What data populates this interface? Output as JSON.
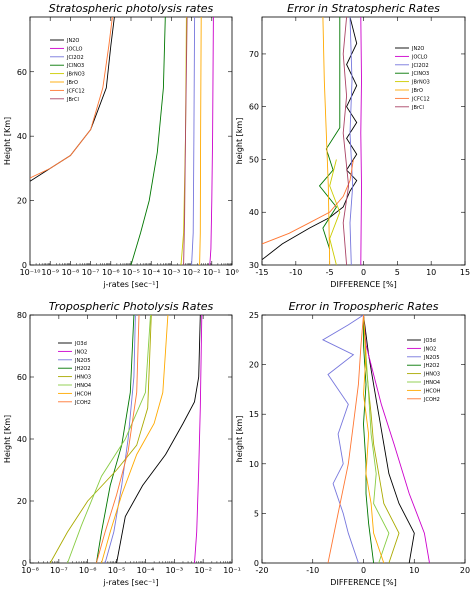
{
  "chart_data": [
    {
      "type": "line",
      "title": "Stratospheric photolysis rates",
      "xlabel": "j-rates [sec⁻¹]",
      "ylabel": "Height [Km]",
      "xscale": "log",
      "xlim": [
        1e-10,
        1
      ],
      "ylim": [
        0,
        77
      ],
      "xticks": [
        "10⁻¹⁰",
        "10⁻⁹",
        "10⁻⁸",
        "10⁻⁷",
        "10⁻⁶",
        "10⁻⁵",
        "10⁻⁴",
        "10⁻³",
        "10⁻²",
        "10⁻¹",
        "10⁰"
      ],
      "yticks": [
        0,
        20,
        40,
        60
      ],
      "legend_position": "top-left",
      "series": [
        {
          "name": "JN2O",
          "color": "#000000",
          "x": [
            1e-10,
            1e-09,
            1e-08,
            1e-07,
            6e-07,
            1e-06,
            1.5e-06
          ],
          "y": [
            26,
            30,
            34,
            42,
            55,
            68,
            77
          ]
        },
        {
          "name": "JOCLO",
          "color": "#cc00cc",
          "x": [
            0.08,
            0.09,
            0.1,
            0.11,
            0.12
          ],
          "y": [
            0,
            5,
            20,
            40,
            77
          ]
        },
        {
          "name": "JCl2O2",
          "color": "#7777dd",
          "x": [
            0.01,
            0.012,
            0.013,
            0.014
          ],
          "y": [
            0,
            10,
            40,
            77
          ]
        },
        {
          "name": "JClNO3",
          "color": "#007700",
          "x": [
            1e-05,
            3e-05,
            8e-05,
            0.0002,
            0.0004,
            0.0005
          ],
          "y": [
            0,
            10,
            20,
            35,
            55,
            77
          ]
        },
        {
          "name": "JBrNO3",
          "color": "#cccc00",
          "x": [
            0.003,
            0.004,
            0.005,
            0.0055
          ],
          "y": [
            0,
            10,
            40,
            77
          ]
        },
        {
          "name": "JBrO",
          "color": "#ffaa00",
          "x": [
            0.025,
            0.027,
            0.028,
            0.03
          ],
          "y": [
            0,
            10,
            40,
            77
          ]
        },
        {
          "name": "JCFC12",
          "color": "#ff7733",
          "x": [
            1e-10,
            1e-09,
            1e-08,
            1e-07,
            4e-07,
            8e-07,
            1.2e-06
          ],
          "y": [
            27,
            30,
            34,
            42,
            55,
            68,
            77
          ]
        },
        {
          "name": "JBrCl",
          "color": "#aa4466",
          "x": [
            0.004,
            0.0045,
            0.005,
            0.006
          ],
          "y": [
            0,
            15,
            40,
            77
          ]
        }
      ]
    },
    {
      "type": "line",
      "title": "Error in Stratospheric Rates",
      "xlabel": "DIFFERENCE [%]",
      "ylabel": "height [km]",
      "xlim": [
        -15,
        15
      ],
      "ylim": [
        30,
        77
      ],
      "xticks": [
        -15,
        -10,
        -5,
        0,
        5,
        10,
        15
      ],
      "yticks": [
        30,
        40,
        50,
        60,
        70
      ],
      "legend_position": "top-right",
      "series": [
        {
          "name": "JN2O",
          "color": "#000000",
          "x": [
            -15,
            -12,
            -8,
            -5,
            -3,
            -2,
            -1,
            -2.5,
            -1,
            -2.5,
            -1,
            -2.5,
            -1,
            -2.5,
            -1,
            -2
          ],
          "y": [
            31,
            34,
            37,
            39,
            41,
            44,
            46,
            48,
            51,
            54,
            57,
            60,
            64,
            68,
            72,
            77
          ]
        },
        {
          "name": "JOCLO",
          "color": "#cc00cc",
          "x": [
            -0.4,
            -0.3,
            -0.4,
            -0.3,
            -0.4
          ],
          "y": [
            30,
            45,
            55,
            65,
            77
          ]
        },
        {
          "name": "JCl2O2",
          "color": "#7777dd",
          "x": [
            -1.8,
            -2,
            -1.6,
            -2,
            -1.7,
            -2
          ],
          "y": [
            30,
            38,
            45,
            55,
            65,
            77
          ]
        },
        {
          "name": "JClNO3",
          "color": "#007700",
          "x": [
            -5,
            -6,
            -4,
            -6.5,
            -4.5,
            -5.5,
            -3.5,
            -3.5
          ],
          "y": [
            33,
            37,
            41,
            45,
            48,
            52,
            56,
            77
          ]
        },
        {
          "name": "JBrNO3",
          "color": "#cccc00",
          "x": [
            -4,
            -5,
            -3.5,
            -5,
            -4
          ],
          "y": [
            30,
            35,
            40,
            45,
            50
          ]
        },
        {
          "name": "JBrO",
          "color": "#ffaa00",
          "x": [
            -5,
            -5.2,
            -5.5,
            -5.8,
            -6
          ],
          "y": [
            30,
            45,
            55,
            65,
            77
          ]
        },
        {
          "name": "JCFC12",
          "color": "#ff7733",
          "x": [
            -15,
            -11,
            -8,
            -5,
            -3,
            -2,
            -1.5
          ],
          "y": [
            34,
            36,
            38,
            40,
            43,
            46,
            50
          ]
        },
        {
          "name": "JBrCl",
          "color": "#aa4466",
          "x": [
            -2.5,
            -3,
            -2.2,
            -3,
            -2.5,
            -3,
            -2.5
          ],
          "y": [
            30,
            38,
            45,
            55,
            62,
            70,
            77
          ]
        }
      ]
    },
    {
      "type": "line",
      "title": "Tropospheric Photolysis Rates",
      "xlabel": "j-rates [sec⁻¹]",
      "ylabel": "Height [Km]",
      "xscale": "log",
      "xlim": [
        1e-08,
        0.1
      ],
      "ylim": [
        0,
        80
      ],
      "xticks": [
        "10⁻⁸",
        "10⁻⁷",
        "10⁻⁶",
        "10⁻⁵",
        "10⁻⁴",
        "10⁻³",
        "10⁻²",
        "10⁻¹"
      ],
      "yticks": [
        0,
        20,
        40,
        60,
        80
      ],
      "legend_position": "top-left",
      "series": [
        {
          "name": "JO3d",
          "color": "#000000",
          "x": [
            1e-05,
            2e-05,
            8e-05,
            0.0005,
            0.002,
            0.005,
            0.007,
            0.008
          ],
          "y": [
            0,
            15,
            25,
            35,
            45,
            52,
            60,
            80
          ]
        },
        {
          "name": "JNO2",
          "color": "#cc00cc",
          "x": [
            0.005,
            0.006,
            0.007,
            0.008,
            0.009
          ],
          "y": [
            0,
            10,
            30,
            50,
            80
          ]
        },
        {
          "name": "JN2O5",
          "color": "#7777dd",
          "x": [
            4e-06,
            8e-06,
            1.5e-05,
            2.5e-05,
            4e-05,
            4.5e-05
          ],
          "y": [
            0,
            10,
            25,
            40,
            60,
            80
          ]
        },
        {
          "name": "JH2O2",
          "color": "#007700",
          "x": [
            2e-06,
            3e-06,
            6e-06,
            1.5e-05,
            3e-05,
            4e-05
          ],
          "y": [
            0,
            10,
            25,
            38,
            55,
            80
          ]
        },
        {
          "name": "JHNO3",
          "color": "#aaaa00",
          "x": [
            5e-08,
            2e-07,
            1e-06,
            1e-05,
            5e-05,
            0.00012,
            0.00016
          ],
          "y": [
            0,
            10,
            20,
            30,
            38,
            50,
            80
          ]
        },
        {
          "name": "JHNO4",
          "color": "#88cc44",
          "x": [
            2e-07,
            6e-07,
            3e-06,
            2e-05,
            0.0001,
            0.00015
          ],
          "y": [
            0,
            12,
            28,
            40,
            55,
            80
          ]
        },
        {
          "name": "JHCOH",
          "color": "#ffaa00",
          "x": [
            3e-06,
            6e-06,
            1.5e-05,
            5e-05,
            0.0002,
            0.0004,
            0.0006
          ],
          "y": [
            0,
            10,
            22,
            35,
            45,
            55,
            80
          ]
        },
        {
          "name": "JCOH2",
          "color": "#ff7733",
          "x": [
            2e-06,
            4e-06,
            1e-05,
            2.5e-05,
            5e-05,
            6e-05
          ],
          "y": [
            0,
            10,
            22,
            36,
            55,
            80
          ]
        }
      ]
    },
    {
      "type": "line",
      "title": "Error in Tropospheric Rates",
      "xlabel": "DIFFERENCE [%]",
      "ylabel": "height [km]",
      "xlim": [
        -20,
        20
      ],
      "ylim": [
        0,
        25
      ],
      "xticks": [
        -20,
        -10,
        0,
        10,
        20
      ],
      "yticks": [
        0,
        5,
        10,
        15,
        20,
        25
      ],
      "legend_position": "top-right",
      "series": [
        {
          "name": "JO3d",
          "color": "#000000",
          "x": [
            9,
            10,
            7,
            5,
            4,
            3,
            2,
            1,
            0
          ],
          "y": [
            0,
            3,
            6,
            9,
            12,
            15,
            18,
            21,
            25
          ]
        },
        {
          "name": "JNO2",
          "color": "#cc00cc",
          "x": [
            13,
            12,
            9,
            6,
            3.5,
            2,
            0.5,
            0
          ],
          "y": [
            0,
            3,
            7,
            12,
            16,
            19,
            22,
            25
          ]
        },
        {
          "name": "JN2O5",
          "color": "#7777dd",
          "x": [
            -1,
            -3,
            -4,
            -6,
            -4,
            -5,
            -3,
            -7,
            -2,
            -8,
            -3,
            0
          ],
          "y": [
            0,
            3,
            5,
            8,
            10,
            13,
            16,
            19,
            21,
            22.5,
            24,
            25
          ]
        },
        {
          "name": "JH2O2",
          "color": "#007700",
          "x": [
            2,
            1,
            0.5,
            0.5,
            0,
            0.5,
            0,
            0
          ],
          "y": [
            0,
            4,
            7,
            10,
            14,
            18,
            22,
            25
          ]
        },
        {
          "name": "JHNO3",
          "color": "#aaaa00",
          "x": [
            5,
            7,
            4,
            3,
            2,
            1.5,
            0.5,
            0
          ],
          "y": [
            0,
            3,
            6,
            9,
            12,
            15,
            20,
            25
          ]
        },
        {
          "name": "JHNO4",
          "color": "#88cc44",
          "x": [
            3,
            5,
            2,
            2.5,
            1.5,
            1,
            0.5,
            0
          ],
          "y": [
            0,
            3,
            6,
            9,
            13,
            17,
            21,
            25
          ]
        },
        {
          "name": "JHCOH",
          "color": "#ffaa00",
          "x": [
            4,
            2,
            1.5,
            0.5,
            1,
            0,
            0.5,
            0
          ],
          "y": [
            0,
            3,
            6,
            9,
            13,
            17,
            21,
            25
          ]
        },
        {
          "name": "JCOH2",
          "color": "#ff7733",
          "x": [
            -7,
            -5,
            -3,
            -2,
            -1,
            -0.5,
            0
          ],
          "y": [
            0,
            5,
            10,
            14,
            18,
            22,
            25
          ]
        }
      ]
    }
  ]
}
